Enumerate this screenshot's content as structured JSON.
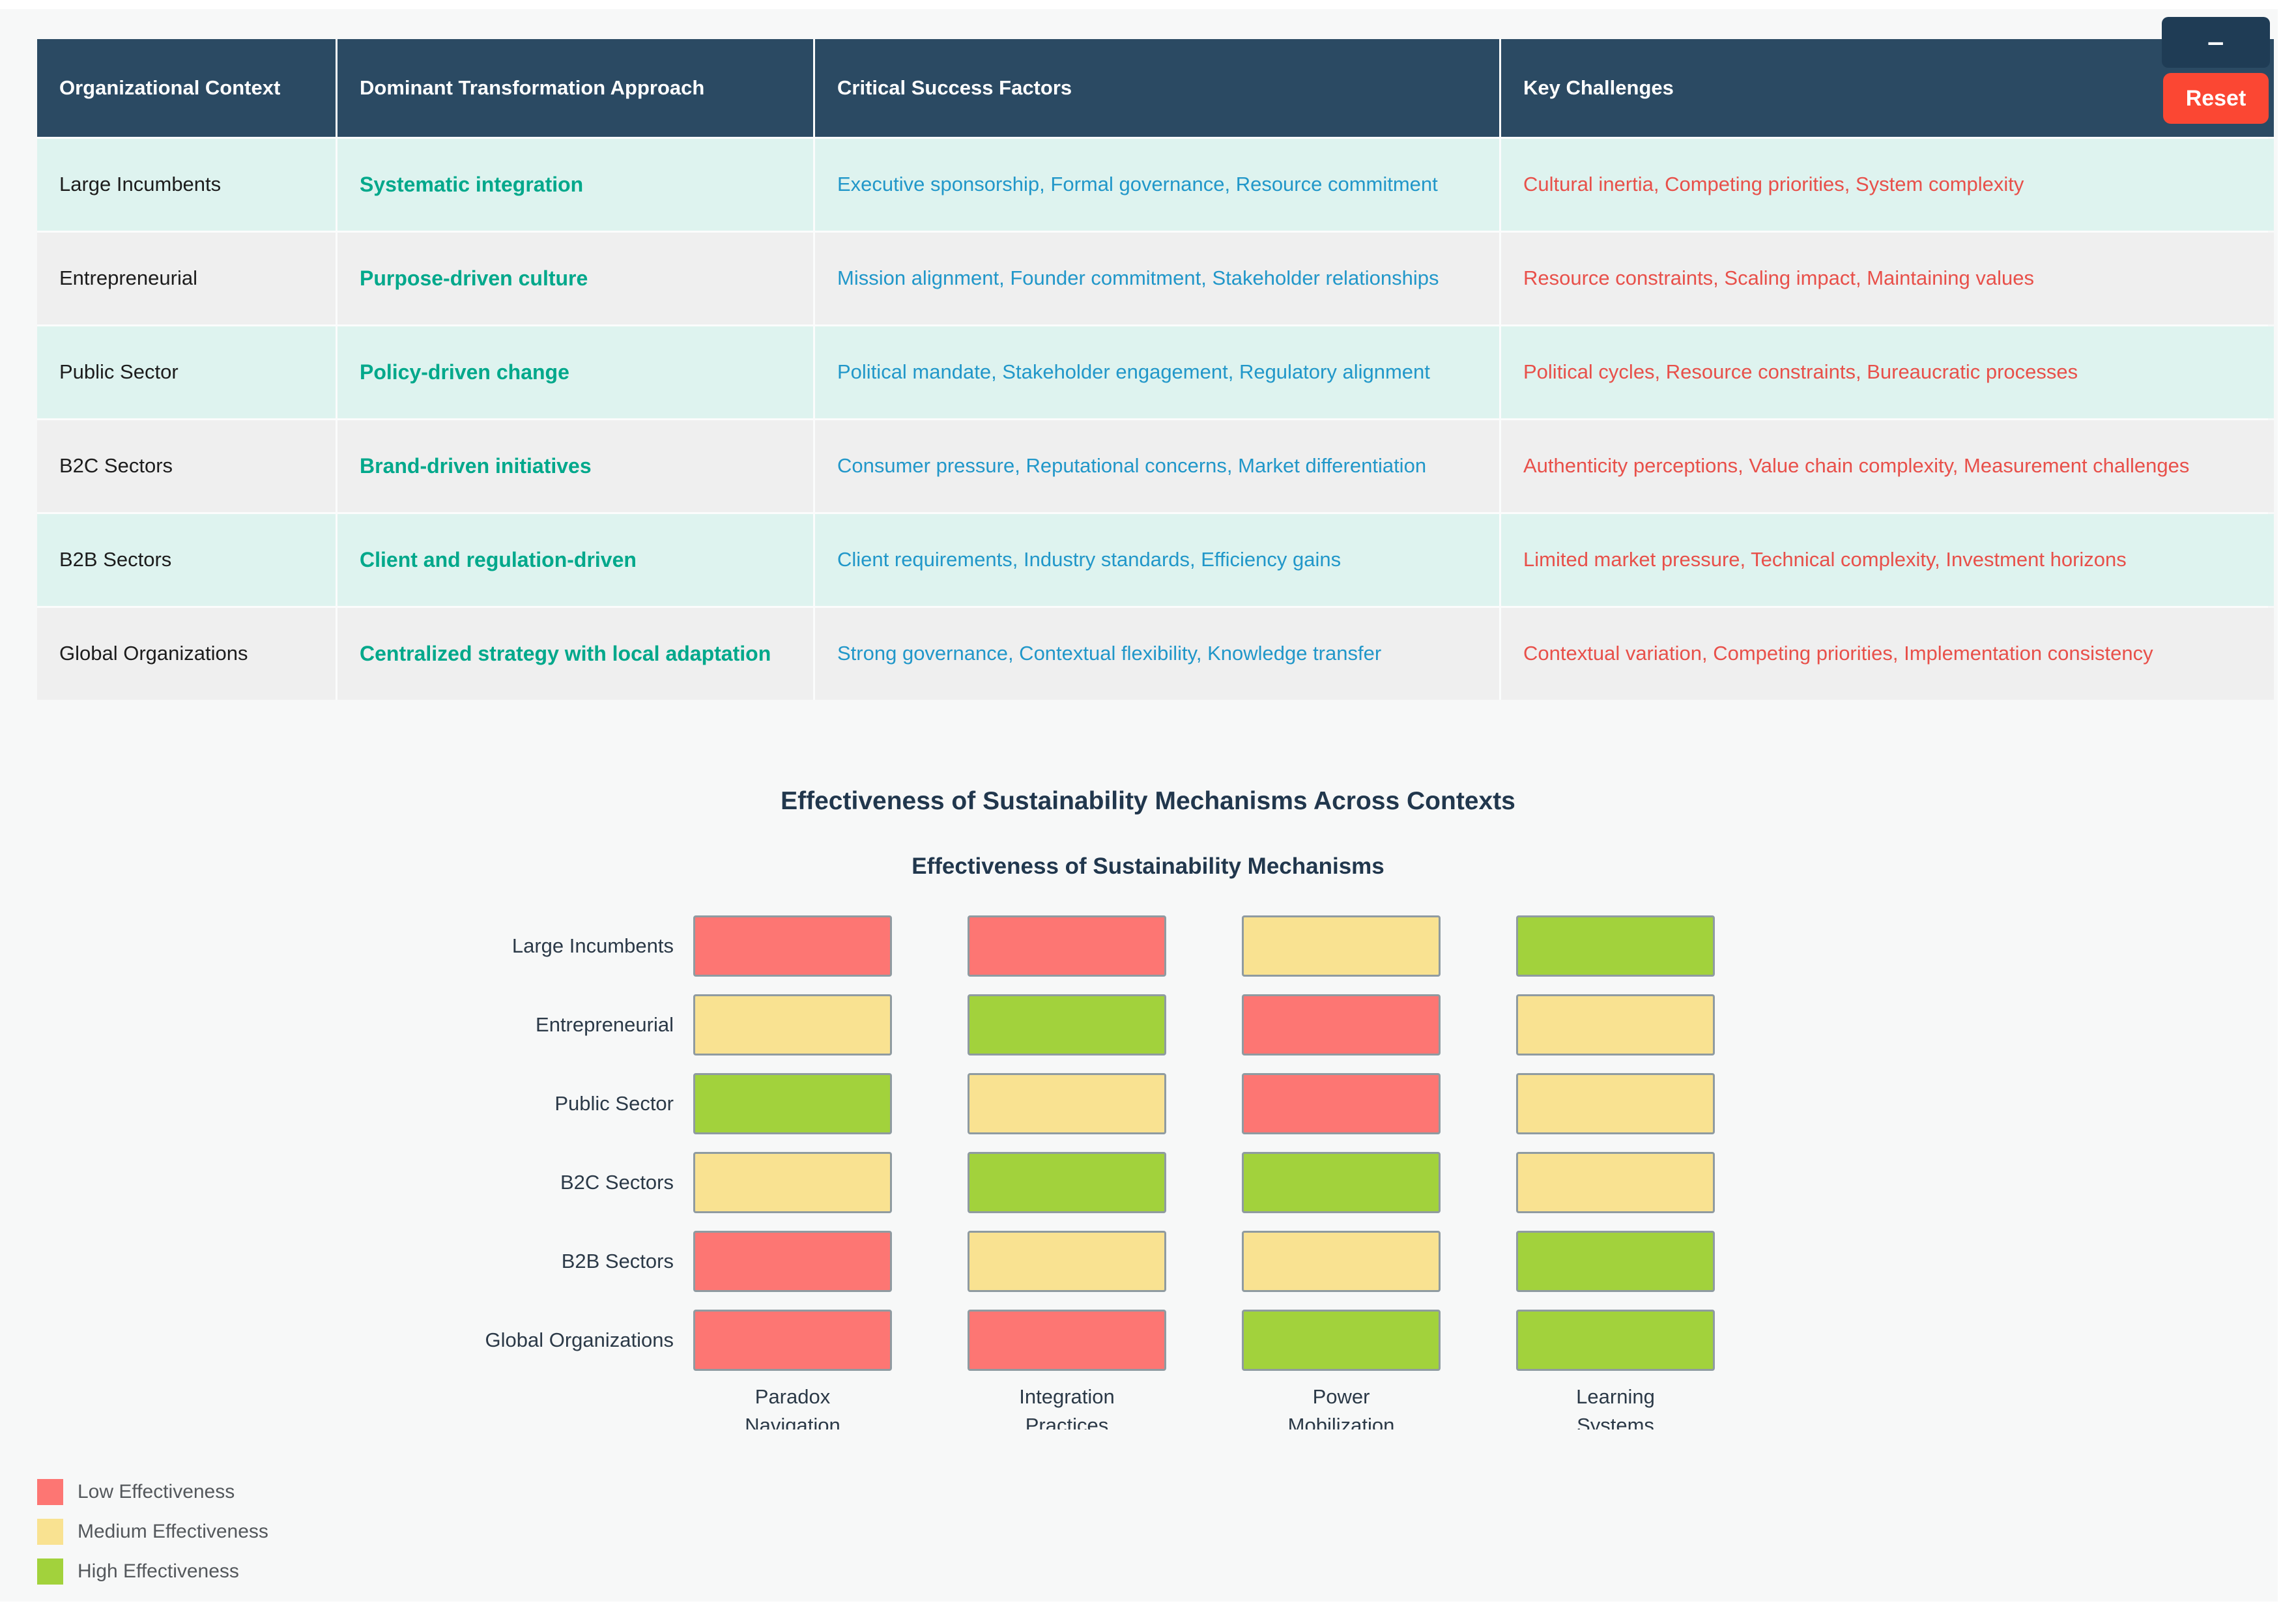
{
  "controls": {
    "minimize_label": "-",
    "reset_label": "Reset"
  },
  "theme": {
    "header_bg": "#2b4a63",
    "row_mint_bg": "#def3ef",
    "row_gray_bg": "#efefef",
    "approach_text": "#00a88b",
    "success_text": "#2197c9",
    "challenge_text": "#e8504a",
    "reset_button_bg": "#fb4733",
    "minimize_button_bg": "#1f3c55",
    "page_bg": "#f7f8f8"
  },
  "table": {
    "headers": [
      "Organizational Context",
      "Dominant Transformation Approach",
      "Critical Success Factors",
      "Key Challenges"
    ],
    "rows": [
      {
        "context": "Large Incumbents",
        "approach": "Systematic integration",
        "success_factors": "Executive sponsorship, Formal governance, Resource commitment",
        "key_challenges": "Cultural inertia, Competing priorities, System complexity"
      },
      {
        "context": "Entrepreneurial",
        "approach": "Purpose-driven culture",
        "success_factors": "Mission alignment, Founder commitment, Stakeholder relationships",
        "key_challenges": "Resource constraints, Scaling impact, Maintaining values"
      },
      {
        "context": "Public Sector",
        "approach": "Policy-driven change",
        "success_factors": "Political mandate, Stakeholder engagement, Regulatory alignment",
        "key_challenges": "Political cycles, Resource constraints, Bureaucratic processes"
      },
      {
        "context": "B2C Sectors",
        "approach": "Brand-driven initiatives",
        "success_factors": "Consumer pressure, Reputational concerns, Market differentiation",
        "key_challenges": "Authenticity perceptions, Value chain complexity, Measurement challenges"
      },
      {
        "context": "B2B Sectors",
        "approach": "Client and regulation-driven",
        "success_factors": "Client requirements, Industry standards, Efficiency gains",
        "key_challenges": "Limited market pressure, Technical complexity, Investment horizons"
      },
      {
        "context": "Global Organizations",
        "approach": "Centralized strategy with local adaptation",
        "success_factors": "Strong governance, Contextual flexibility, Knowledge transfer",
        "key_challenges": "Contextual variation, Competing priorities, Implementation consistency"
      }
    ]
  },
  "chart_data": {
    "type": "heatmap",
    "title": "Effectiveness of Sustainability Mechanisms Across Contexts",
    "subtitle": "Effectiveness of Sustainability Mechanisms",
    "rows": [
      "Large Incumbents",
      "Entrepreneurial",
      "Public Sector",
      "B2C Sectors",
      "B2B Sectors",
      "Global Organizations"
    ],
    "columns": [
      "Paradox Navigation",
      "Integration Practices",
      "Power Mobilization",
      "Learning Systems"
    ],
    "values": [
      [
        "low",
        "low",
        "medium",
        "high"
      ],
      [
        "medium",
        "high",
        "low",
        "medium"
      ],
      [
        "high",
        "medium",
        "low",
        "medium"
      ],
      [
        "medium",
        "high",
        "high",
        "medium"
      ],
      [
        "low",
        "medium",
        "medium",
        "high"
      ],
      [
        "low",
        "low",
        "high",
        "high"
      ]
    ],
    "colors": {
      "low": "#fd7673",
      "medium": "#f9e291",
      "high": "#a2d23c"
    },
    "legend": [
      {
        "level": "low",
        "label": "Low Effectiveness"
      },
      {
        "level": "medium",
        "label": "Medium Effectiveness"
      },
      {
        "level": "high",
        "label": "High Effectiveness"
      }
    ],
    "legend_position": "bottom-left",
    "grid": false
  }
}
